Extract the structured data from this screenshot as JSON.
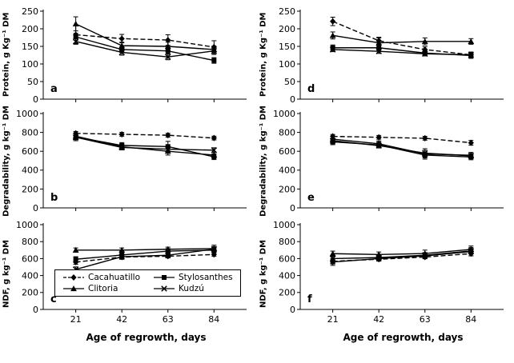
{
  "xlabel": "Age of regrowth, days",
  "categories": [
    21,
    42,
    63,
    84
  ],
  "legend": {
    "items": [
      "Cacahuatillo",
      "Stylosanthes",
      "Clitoria",
      "Kudzú"
    ]
  },
  "series_styles": {
    "Cacahuatillo": {
      "marker": "diamond",
      "dash": true,
      "color": "#000000"
    },
    "Stylosanthes": {
      "marker": "square",
      "dash": false,
      "color": "#000000"
    },
    "Clitoria": {
      "marker": "triangle",
      "dash": false,
      "color": "#000000"
    },
    "Kudzú": {
      "marker": "x",
      "dash": false,
      "color": "#000000"
    }
  },
  "chart_data": [
    {
      "id": "a",
      "type": "line",
      "panel_letter": "a",
      "ylabel": "Protein, g Kg⁻¹ DM",
      "ylim": [
        0,
        250
      ],
      "yticks": [
        0,
        50,
        100,
        150,
        200,
        250
      ],
      "x_ticklabels": false,
      "series": [
        {
          "name": "Cacahuatillo",
          "values": [
            183,
            172,
            168,
            148
          ],
          "errors": [
            25,
            12,
            15,
            18
          ]
        },
        {
          "name": "Stylosanthes",
          "values": [
            177,
            141,
            137,
            110
          ],
          "errors": [
            10,
            8,
            8,
            8
          ]
        },
        {
          "name": "Clitoria",
          "values": [
            214,
            152,
            150,
            141
          ],
          "errors": [
            20,
            10,
            12,
            10
          ]
        },
        {
          "name": "Kudzú",
          "values": [
            164,
            133,
            120,
            137
          ],
          "errors": [
            8,
            8,
            8,
            10
          ]
        }
      ]
    },
    {
      "id": "b",
      "type": "line",
      "panel_letter": "b",
      "ylabel": "Degradability, g kg⁻¹ DM",
      "ylim": [
        0,
        1000
      ],
      "yticks": [
        0,
        200,
        400,
        600,
        800,
        1000
      ],
      "x_ticklabels": false,
      "series": [
        {
          "name": "Cacahuatillo",
          "values": [
            790,
            780,
            770,
            740
          ],
          "errors": [
            20,
            20,
            20,
            20
          ]
        },
        {
          "name": "Stylosanthes",
          "values": [
            752,
            662,
            650,
            542
          ],
          "errors": [
            40,
            30,
            55,
            30
          ]
        },
        {
          "name": "Clitoria",
          "values": [
            760,
            648,
            600,
            560
          ],
          "errors": [
            30,
            30,
            40,
            30
          ]
        },
        {
          "name": "Kudzú",
          "values": [
            748,
            640,
            622,
            612
          ],
          "errors": [
            25,
            25,
            30,
            25
          ]
        }
      ]
    },
    {
      "id": "c",
      "type": "line",
      "panel_letter": "c",
      "ylabel": "NDF, g kg⁻¹ DM",
      "ylim": [
        0,
        1000
      ],
      "yticks": [
        0,
        200,
        400,
        600,
        800,
        1000
      ],
      "x_ticklabels": true,
      "series": [
        {
          "name": "Cacahuatillo",
          "values": [
            558,
            618,
            628,
            648
          ],
          "errors": [
            25,
            20,
            20,
            20
          ]
        },
        {
          "name": "Stylosanthes",
          "values": [
            592,
            642,
            688,
            700
          ],
          "errors": [
            30,
            40,
            30,
            30
          ]
        },
        {
          "name": "Clitoria",
          "values": [
            700,
            700,
            710,
            718
          ],
          "errors": [
            25,
            25,
            25,
            40
          ]
        },
        {
          "name": "Kudzú",
          "values": [
            472,
            622,
            640,
            712
          ],
          "errors": [
            30,
            30,
            30,
            30
          ]
        }
      ]
    },
    {
      "id": "d",
      "type": "line",
      "panel_letter": "d",
      "ylabel": "Protein, g Kg⁻¹ DM",
      "ylim": [
        0,
        250
      ],
      "yticks": [
        0,
        50,
        100,
        150,
        200,
        250
      ],
      "x_ticklabels": false,
      "series": [
        {
          "name": "Cacahuatillo",
          "values": [
            221,
            166,
            141,
            126
          ],
          "errors": [
            12,
            10,
            8,
            8
          ]
        },
        {
          "name": "Stylosanthes",
          "values": [
            146,
            146,
            131,
            124
          ],
          "errors": [
            8,
            8,
            8,
            8
          ]
        },
        {
          "name": "Clitoria",
          "values": [
            181,
            160,
            164,
            164
          ],
          "errors": [
            10,
            14,
            10,
            8
          ]
        },
        {
          "name": "Kudzú",
          "values": [
            141,
            136,
            129,
            126
          ],
          "errors": [
            6,
            6,
            6,
            6
          ]
        }
      ]
    },
    {
      "id": "e",
      "type": "line",
      "panel_letter": "e",
      "ylabel": "Degradability, g kg⁻¹ DM",
      "ylim": [
        0,
        1000
      ],
      "yticks": [
        0,
        200,
        400,
        600,
        800,
        1000
      ],
      "x_ticklabels": false,
      "series": [
        {
          "name": "Cacahuatillo",
          "values": [
            758,
            748,
            738,
            690
          ],
          "errors": [
            20,
            20,
            20,
            25
          ]
        },
        {
          "name": "Stylosanthes",
          "values": [
            700,
            668,
            560,
            540
          ],
          "errors": [
            30,
            30,
            30,
            30
          ]
        },
        {
          "name": "Clitoria",
          "values": [
            728,
            680,
            572,
            558
          ],
          "errors": [
            30,
            30,
            55,
            30
          ]
        },
        {
          "name": "Kudzú",
          "values": [
            712,
            660,
            580,
            552
          ],
          "errors": [
            25,
            25,
            30,
            25
          ]
        }
      ]
    },
    {
      "id": "f",
      "type": "line",
      "panel_letter": "f",
      "ylabel": "NDF, g kg⁻¹ DM",
      "ylim": [
        0,
        1000
      ],
      "yticks": [
        0,
        200,
        400,
        600,
        800,
        1000
      ],
      "x_ticklabels": true,
      "series": [
        {
          "name": "Cacahuatillo",
          "values": [
            568,
            592,
            618,
            658
          ],
          "errors": [
            25,
            20,
            20,
            25
          ]
        },
        {
          "name": "Stylosanthes",
          "values": [
            560,
            600,
            632,
            682
          ],
          "errors": [
            40,
            30,
            30,
            50
          ]
        },
        {
          "name": "Clitoria",
          "values": [
            658,
            648,
            660,
            708
          ],
          "errors": [
            30,
            30,
            40,
            40
          ]
        },
        {
          "name": "Kudzú",
          "values": [
            600,
            612,
            640,
            690
          ],
          "errors": [
            25,
            25,
            30,
            30
          ]
        }
      ]
    }
  ]
}
